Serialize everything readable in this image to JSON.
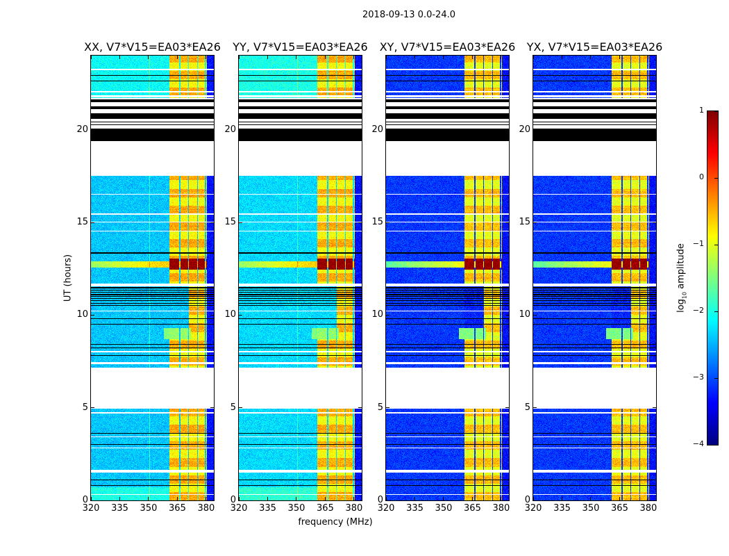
{
  "chart_data": {
    "type": "heatmap",
    "title": "2018-09-13 0.0-24.0",
    "xlabel": "frequency (MHz)",
    "ylabel": "UT (hours)",
    "xlim": [
      320,
      384
    ],
    "ylim": [
      0,
      24
    ],
    "xticks": [
      320,
      335,
      350,
      365,
      380
    ],
    "yticks": [
      0,
      5,
      10,
      15,
      20
    ],
    "colorbar": {
      "label_prefix": "log",
      "label_sub": "10",
      "label_suffix": " amplitude",
      "colormap": "jet",
      "range": [
        -4,
        1
      ],
      "ticks": [
        1,
        0,
        -1,
        -2,
        -3,
        -4
      ],
      "tick_labels": [
        "1",
        "0",
        "−1",
        "−2",
        "−3",
        "−4"
      ]
    },
    "panels": [
      {
        "title": "XX, V7*V15=EA03*EA26",
        "pol": "XX",
        "background_log_amp": -2.4
      },
      {
        "title": "YY, V7*V15=EA03*EA26",
        "pol": "YY",
        "background_log_amp": -2.3
      },
      {
        "title": "XY, V7*V15=EA03*EA26",
        "pol": "XY",
        "background_log_amp": -3.1
      },
      {
        "title": "YX, V7*V15=EA03*EA26",
        "pol": "YX",
        "background_log_amp": -3.1
      }
    ],
    "rfi_band_mhz": [
      361,
      380.5
    ],
    "rfi_band_log_amp": -0.9,
    "rfi_channel_gaps_mhz": [
      366.3,
      370.8,
      375.5,
      379.8
    ],
    "strong_rfi": {
      "ut": [
        12.45,
        13.05
      ],
      "mhz": [
        361,
        380.5
      ],
      "log_amp": 0.9
    },
    "broadband_rfi": {
      "ut": [
        12.55,
        12.9
      ],
      "log_amp_at_320": -1.4,
      "log_amp_at_360": -0.6
    },
    "no_data_ut": [
      [
        17.5,
        21.7
      ],
      [
        4.95,
        7.15
      ],
      [
        11.55,
        11.7
      ],
      [
        1.5,
        1.65
      ],
      [
        0.3,
        0.35
      ],
      [
        7.35,
        7.45
      ],
      [
        8.0,
        8.05
      ],
      [
        10.2,
        10.25
      ],
      [
        14.5,
        14.55
      ],
      [
        15.0,
        15.05
      ],
      [
        15.4,
        15.5
      ],
      [
        16.5,
        16.55
      ],
      [
        22.0,
        22.1
      ],
      [
        21.75,
        21.85
      ],
      [
        23.2,
        23.3
      ],
      [
        4.7,
        4.75
      ],
      [
        3.4,
        3.45
      ],
      [
        2.8,
        2.85
      ]
    ],
    "flagged_ut": [
      [
        19.4,
        20.05
      ],
      [
        20.25,
        20.3
      ],
      [
        20.4,
        20.45
      ],
      [
        20.6,
        20.9
      ],
      [
        21.1,
        21.26
      ],
      [
        21.5,
        21.62
      ],
      [
        13.3,
        13.38
      ],
      [
        10.5,
        10.55
      ],
      [
        10.62,
        10.66
      ],
      [
        10.75,
        10.8
      ],
      [
        10.86,
        10.9
      ],
      [
        10.97,
        11.02
      ],
      [
        11.08,
        11.12
      ],
      [
        11.2,
        11.25
      ],
      [
        11.32,
        11.36
      ],
      [
        11.44,
        11.5
      ],
      [
        9.8,
        9.84
      ],
      [
        9.5,
        9.54
      ],
      [
        8.4,
        8.44
      ],
      [
        8.2,
        8.24
      ],
      [
        7.8,
        7.84
      ],
      [
        3.6,
        3.64
      ],
      [
        3.0,
        3.04
      ],
      [
        1.1,
        1.14
      ],
      [
        0.8,
        0.84
      ],
      [
        22.6,
        22.64
      ],
      [
        22.9,
        22.94
      ]
    ]
  }
}
